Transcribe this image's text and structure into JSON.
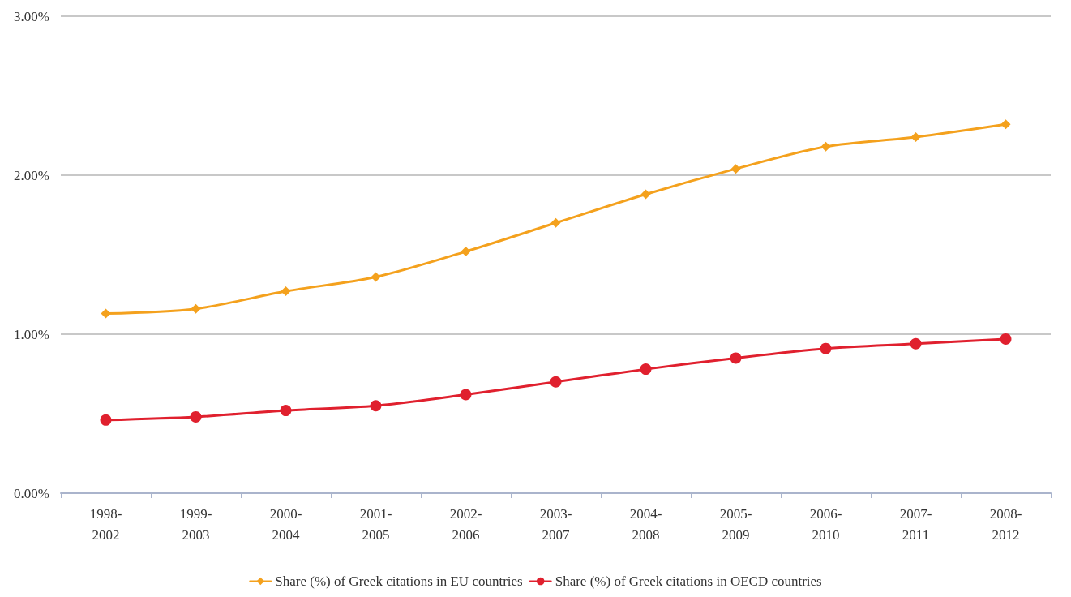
{
  "chart_data": {
    "type": "line",
    "categories": [
      "1998-2002",
      "1999-2003",
      "2000-2004",
      "2001-2005",
      "2002-2006",
      "2003-2007",
      "2004-2008",
      "2005-2009",
      "2006-2010",
      "2007-2011",
      "2008-2012"
    ],
    "series": [
      {
        "name": "Share (%) of Greek citations in EU countries",
        "color": "#f4a11d",
        "marker": "diamond",
        "values": [
          1.13,
          1.16,
          1.27,
          1.36,
          1.52,
          1.7,
          1.88,
          2.04,
          2.18,
          2.24,
          2.32
        ]
      },
      {
        "name": "Share (%) of Greek citations in OECD countries",
        "color": "#e0202e",
        "marker": "circle",
        "values": [
          0.46,
          0.48,
          0.52,
          0.55,
          0.62,
          0.7,
          0.78,
          0.85,
          0.91,
          0.94,
          0.97
        ]
      }
    ],
    "ylim": [
      0,
      3
    ],
    "yticks": [
      {
        "value": 0,
        "label": "0.00%"
      },
      {
        "value": 1,
        "label": "1.00%"
      },
      {
        "value": 2,
        "label": "2.00%"
      },
      {
        "value": 3,
        "label": "3.00%"
      }
    ],
    "grid": "y",
    "legend": "bottom",
    "line_style": "solid"
  }
}
